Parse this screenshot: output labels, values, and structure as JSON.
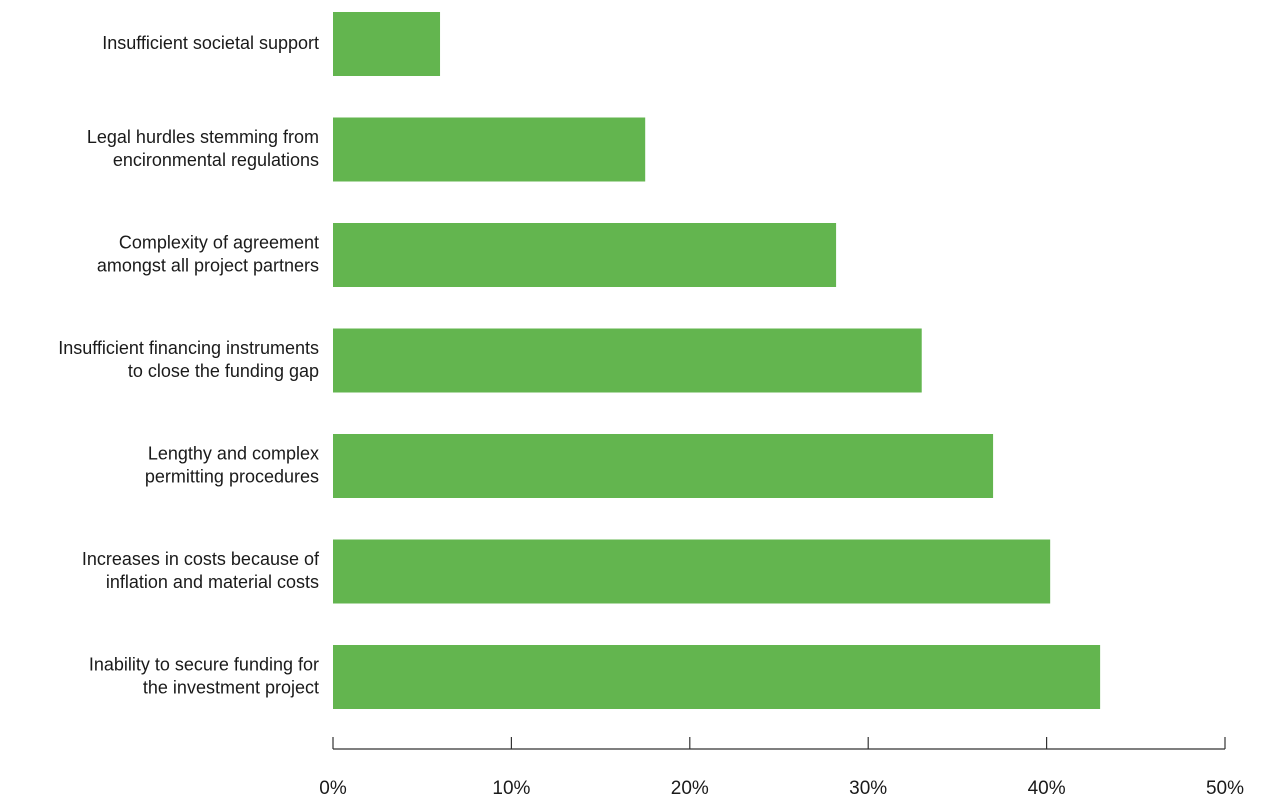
{
  "chart_data": {
    "type": "bar",
    "orientation": "horizontal",
    "title": "",
    "xlabel": "",
    "ylabel": "",
    "categories": [
      [
        "Insufficient societal support"
      ],
      [
        "Legal hurdles stemming from",
        "encironmental regulations"
      ],
      [
        "Complexity of agreement",
        "amongst all project partners"
      ],
      [
        "Insufficient financing instruments",
        "to close the funding gap"
      ],
      [
        "Lengthy and complex",
        "permitting procedures"
      ],
      [
        "Increases in costs because of",
        "inflation and material costs"
      ],
      [
        "Inability to secure funding for",
        "the investment project"
      ]
    ],
    "values": [
      6,
      17.5,
      28.2,
      33,
      37,
      40.2,
      43
    ],
    "value_unit": "%",
    "xlim": [
      0,
      50
    ],
    "x_ticks": [
      0,
      10,
      20,
      30,
      40,
      50
    ],
    "x_tick_labels": [
      "0%",
      "10%",
      "20%",
      "30%",
      "40%",
      "50%"
    ],
    "grid": false,
    "legend": "none",
    "bar_color": "#63b54f",
    "axis_color": "#333333",
    "text_color": "#1a1a1a"
  }
}
